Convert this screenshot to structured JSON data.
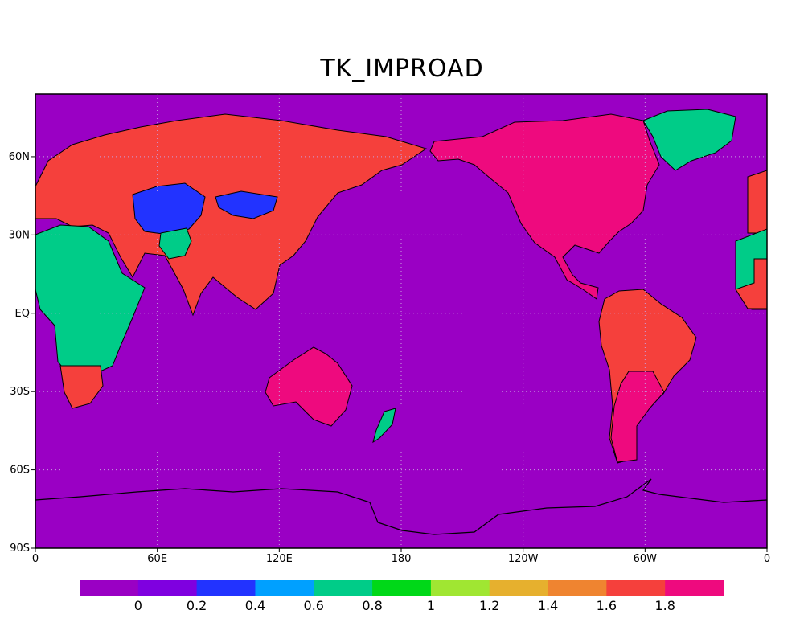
{
  "title": "TK_IMPROAD",
  "map": {
    "background_color": "#9a00c4",
    "gridlines": true,
    "gridline_style": "dotted",
    "lon_ticks": [
      "0",
      "60E",
      "120E",
      "180",
      "120W",
      "60W",
      "0"
    ],
    "lat_ticks": [
      "60N",
      "30N",
      "EQ",
      "30S",
      "60S",
      "90S"
    ],
    "regions": [
      {
        "name": "north-america",
        "color": "#ee0a7e"
      },
      {
        "name": "greenland",
        "color": "#00cc88"
      },
      {
        "name": "south-america",
        "color": "#f5403c"
      },
      {
        "name": "southern-south-america",
        "color": "#ee0a7e"
      },
      {
        "name": "eurasia",
        "color": "#f5403c"
      },
      {
        "name": "central-asia",
        "color": "#2233ff"
      },
      {
        "name": "mongolia",
        "color": "#2233ff"
      },
      {
        "name": "tibet",
        "color": "#00cc88"
      },
      {
        "name": "africa",
        "color": "#00cc88"
      },
      {
        "name": "southern-africa",
        "color": "#f5403c"
      },
      {
        "name": "australia",
        "color": "#ee0a7e"
      },
      {
        "name": "new-zealand",
        "color": "#00cc88"
      }
    ]
  },
  "colorbar": {
    "colors": [
      "#9a00c4",
      "#7f00e0",
      "#2233ff",
      "#00a0ff",
      "#00cc88",
      "#00d818",
      "#a0e632",
      "#e6b02e",
      "#ef8430",
      "#f5403c",
      "#ee0a7e"
    ],
    "labels": [
      "0",
      "0.2",
      "0.4",
      "0.6",
      "0.8",
      "1",
      "1.2",
      "1.4",
      "1.6",
      "1.8"
    ]
  }
}
